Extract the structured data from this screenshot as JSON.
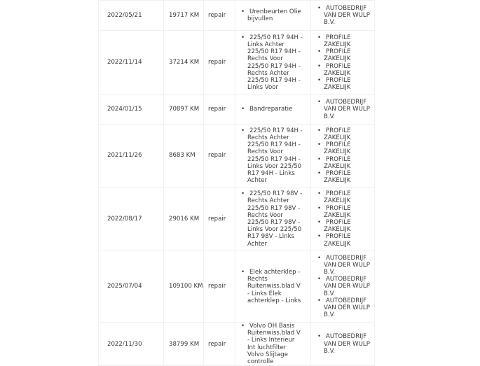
{
  "rows": [
    {
      "date": "2022/05/21",
      "km": "19717 KM",
      "type": "repair",
      "descriptions": [
        "Urenbeurten    Olie bijvullen"
      ],
      "providers": [
        "AUTOBEDRIJF VAN DER WULP B.V."
      ]
    },
    {
      "date": "2022/11/14",
      "km": "37214 KM",
      "type": "repair",
      "descriptions": [
        "225/50 R17 94H - Links Achter  225/50 R17 94H - Rechts Voor  225/50 R17 94H - Rechts Achter 225/50 R17 94H - Links Voor"
      ],
      "providers": [
        "PROFILE ZAKELIJK",
        "PROFILE ZAKELIJK",
        "PROFILE ZAKELIJK",
        "PROFILE ZAKELIJK"
      ]
    },
    {
      "date": "2024/01/15",
      "km": "70897 KM",
      "type": "repair",
      "descriptions": [
        "Bandreparatie"
      ],
      "providers": [
        "AUTOBEDRIJF VAN DER WULP B.V."
      ]
    },
    {
      "date": "2021/11/26",
      "km": "8683 KM",
      "type": "repair",
      "descriptions": [
        "225/50 R17 94H - Rechts Achter 225/50 R17 94H - Rechts Voor  225/50 R17 94H - Links Voor 225/50 R17 94H - Links Achter"
      ],
      "providers": [
        "PROFILE ZAKELIJK",
        "PROFILE ZAKELIJK",
        "PROFILE ZAKELIJK",
        "PROFILE ZAKELIJK"
      ]
    },
    {
      "date": "2022/08/17",
      "km": "29016 KM",
      "type": "repair",
      "descriptions": [
        "225/50 R17 98V - Rechts Achter 225/50 R17 98V - Rechts Voor  225/50 R17 98V - Links Voor 225/50 R17 98V - Links Achter"
      ],
      "providers": [
        "PROFILE ZAKELIJK",
        "PROFILE ZAKELIJK",
        "PROFILE ZAKELIJK",
        "PROFILE ZAKELIJK"
      ]
    },
    {
      "date": "2025/07/04",
      "km": "109100 KM",
      "type": "repair",
      "descriptions": [
        "Elek achterklep - Rechts Ruitenwiss.blad V - Links  Elek achterklep - Links"
      ],
      "providers": [
        "AUTOBEDRIJF VAN DER WULP B.V.",
        "AUTOBEDRIJF VAN DER WULP B.V.",
        "AUTOBEDRIJF VAN DER WULP B.V."
      ]
    },
    {
      "date": "2022/11/30",
      "km": "38799 KM",
      "type": "repair",
      "descriptions": [
        "Volvo OH Basis Ruitenwiss.blad V - Links  Interieur    Int luchtfilter  Volvo Slijtage controlle"
      ],
      "providers": [
        "AUTOBEDRIJF VAN DER WULP B.V."
      ]
    }
  ]
}
